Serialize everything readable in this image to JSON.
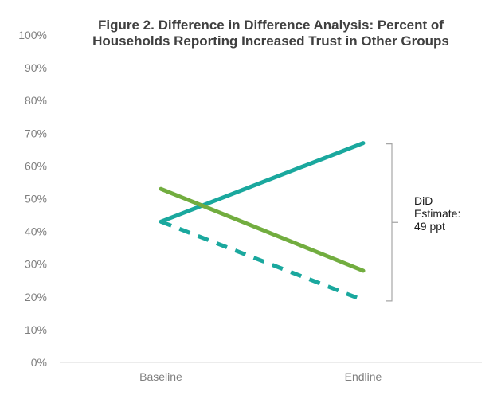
{
  "chart_data": {
    "type": "line",
    "title": "Figure 2. Difference in Difference Analysis: Percent of Households Reporting Increased Trust in Other Groups",
    "categories": [
      "Baseline",
      "Endline"
    ],
    "ylim": [
      0,
      100
    ],
    "yticks": [
      0,
      10,
      20,
      30,
      40,
      50,
      60,
      70,
      80,
      90,
      100
    ],
    "ytick_labels": [
      "0%",
      "10%",
      "20%",
      "30%",
      "40%",
      "50%",
      "60%",
      "70%",
      "80%",
      "90%",
      "100%"
    ],
    "series": [
      {
        "values": [
          43,
          67
        ],
        "color": "#1aa89e",
        "style": "solid"
      },
      {
        "values": [
          53,
          28
        ],
        "color": "#72ad3f",
        "style": "solid"
      },
      {
        "values": [
          43,
          19
        ],
        "color": "#1aa89e",
        "style": "dashed"
      }
    ],
    "annotation": {
      "lines": [
        "DiD",
        "Estimate:",
        "49 ppt"
      ],
      "range": [
        19,
        67
      ]
    },
    "grid": false,
    "legend": "none"
  }
}
